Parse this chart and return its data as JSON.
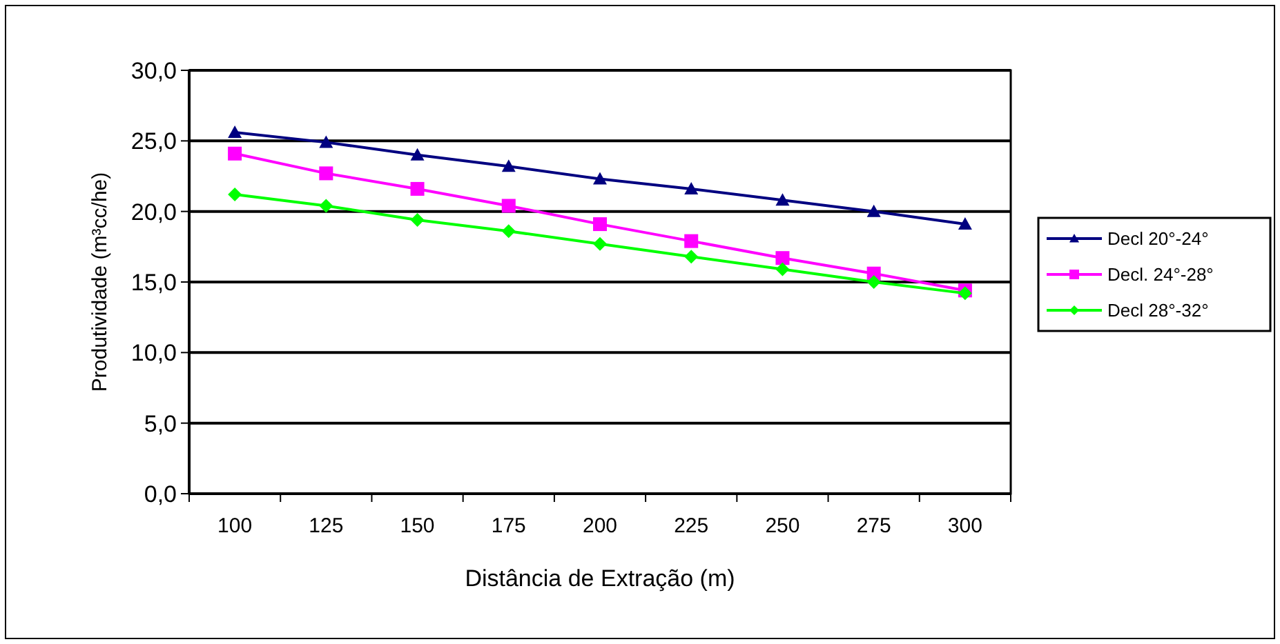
{
  "chart_data": {
    "type": "line",
    "xlabel": "Distância de Extração (m)",
    "ylabel": "Produtividade (m³cc/he)",
    "categories": [
      "100",
      "125",
      "150",
      "175",
      "200",
      "225",
      "250",
      "275",
      "300"
    ],
    "series": [
      {
        "name": "Decl 20°-24°",
        "color": "#000080",
        "marker": "triangle",
        "values": [
          25.6,
          24.9,
          24.0,
          23.2,
          22.3,
          21.6,
          20.8,
          20.0,
          19.1
        ]
      },
      {
        "name": "Decl. 24°-28°",
        "color": "#ff00ff",
        "marker": "square",
        "values": [
          24.1,
          22.7,
          21.6,
          20.4,
          19.1,
          17.9,
          16.7,
          15.6,
          14.4
        ]
      },
      {
        "name": "Decl 28°-32°",
        "color": "#00ff00",
        "marker": "diamond",
        "values": [
          21.2,
          20.4,
          19.4,
          18.6,
          17.7,
          16.8,
          15.9,
          15.0,
          14.2
        ]
      }
    ],
    "ylim": [
      0,
      30
    ],
    "yticks": [
      {
        "value": 0,
        "label": "0,0"
      },
      {
        "value": 5,
        "label": "5,0"
      },
      {
        "value": 10,
        "label": "10,0"
      },
      {
        "value": 15,
        "label": "15,0"
      },
      {
        "value": 20,
        "label": "20,0"
      },
      {
        "value": 25,
        "label": "25,0"
      },
      {
        "value": 30,
        "label": "30,0"
      }
    ],
    "grid": "y",
    "legend": "right",
    "line_style": "solid"
  }
}
